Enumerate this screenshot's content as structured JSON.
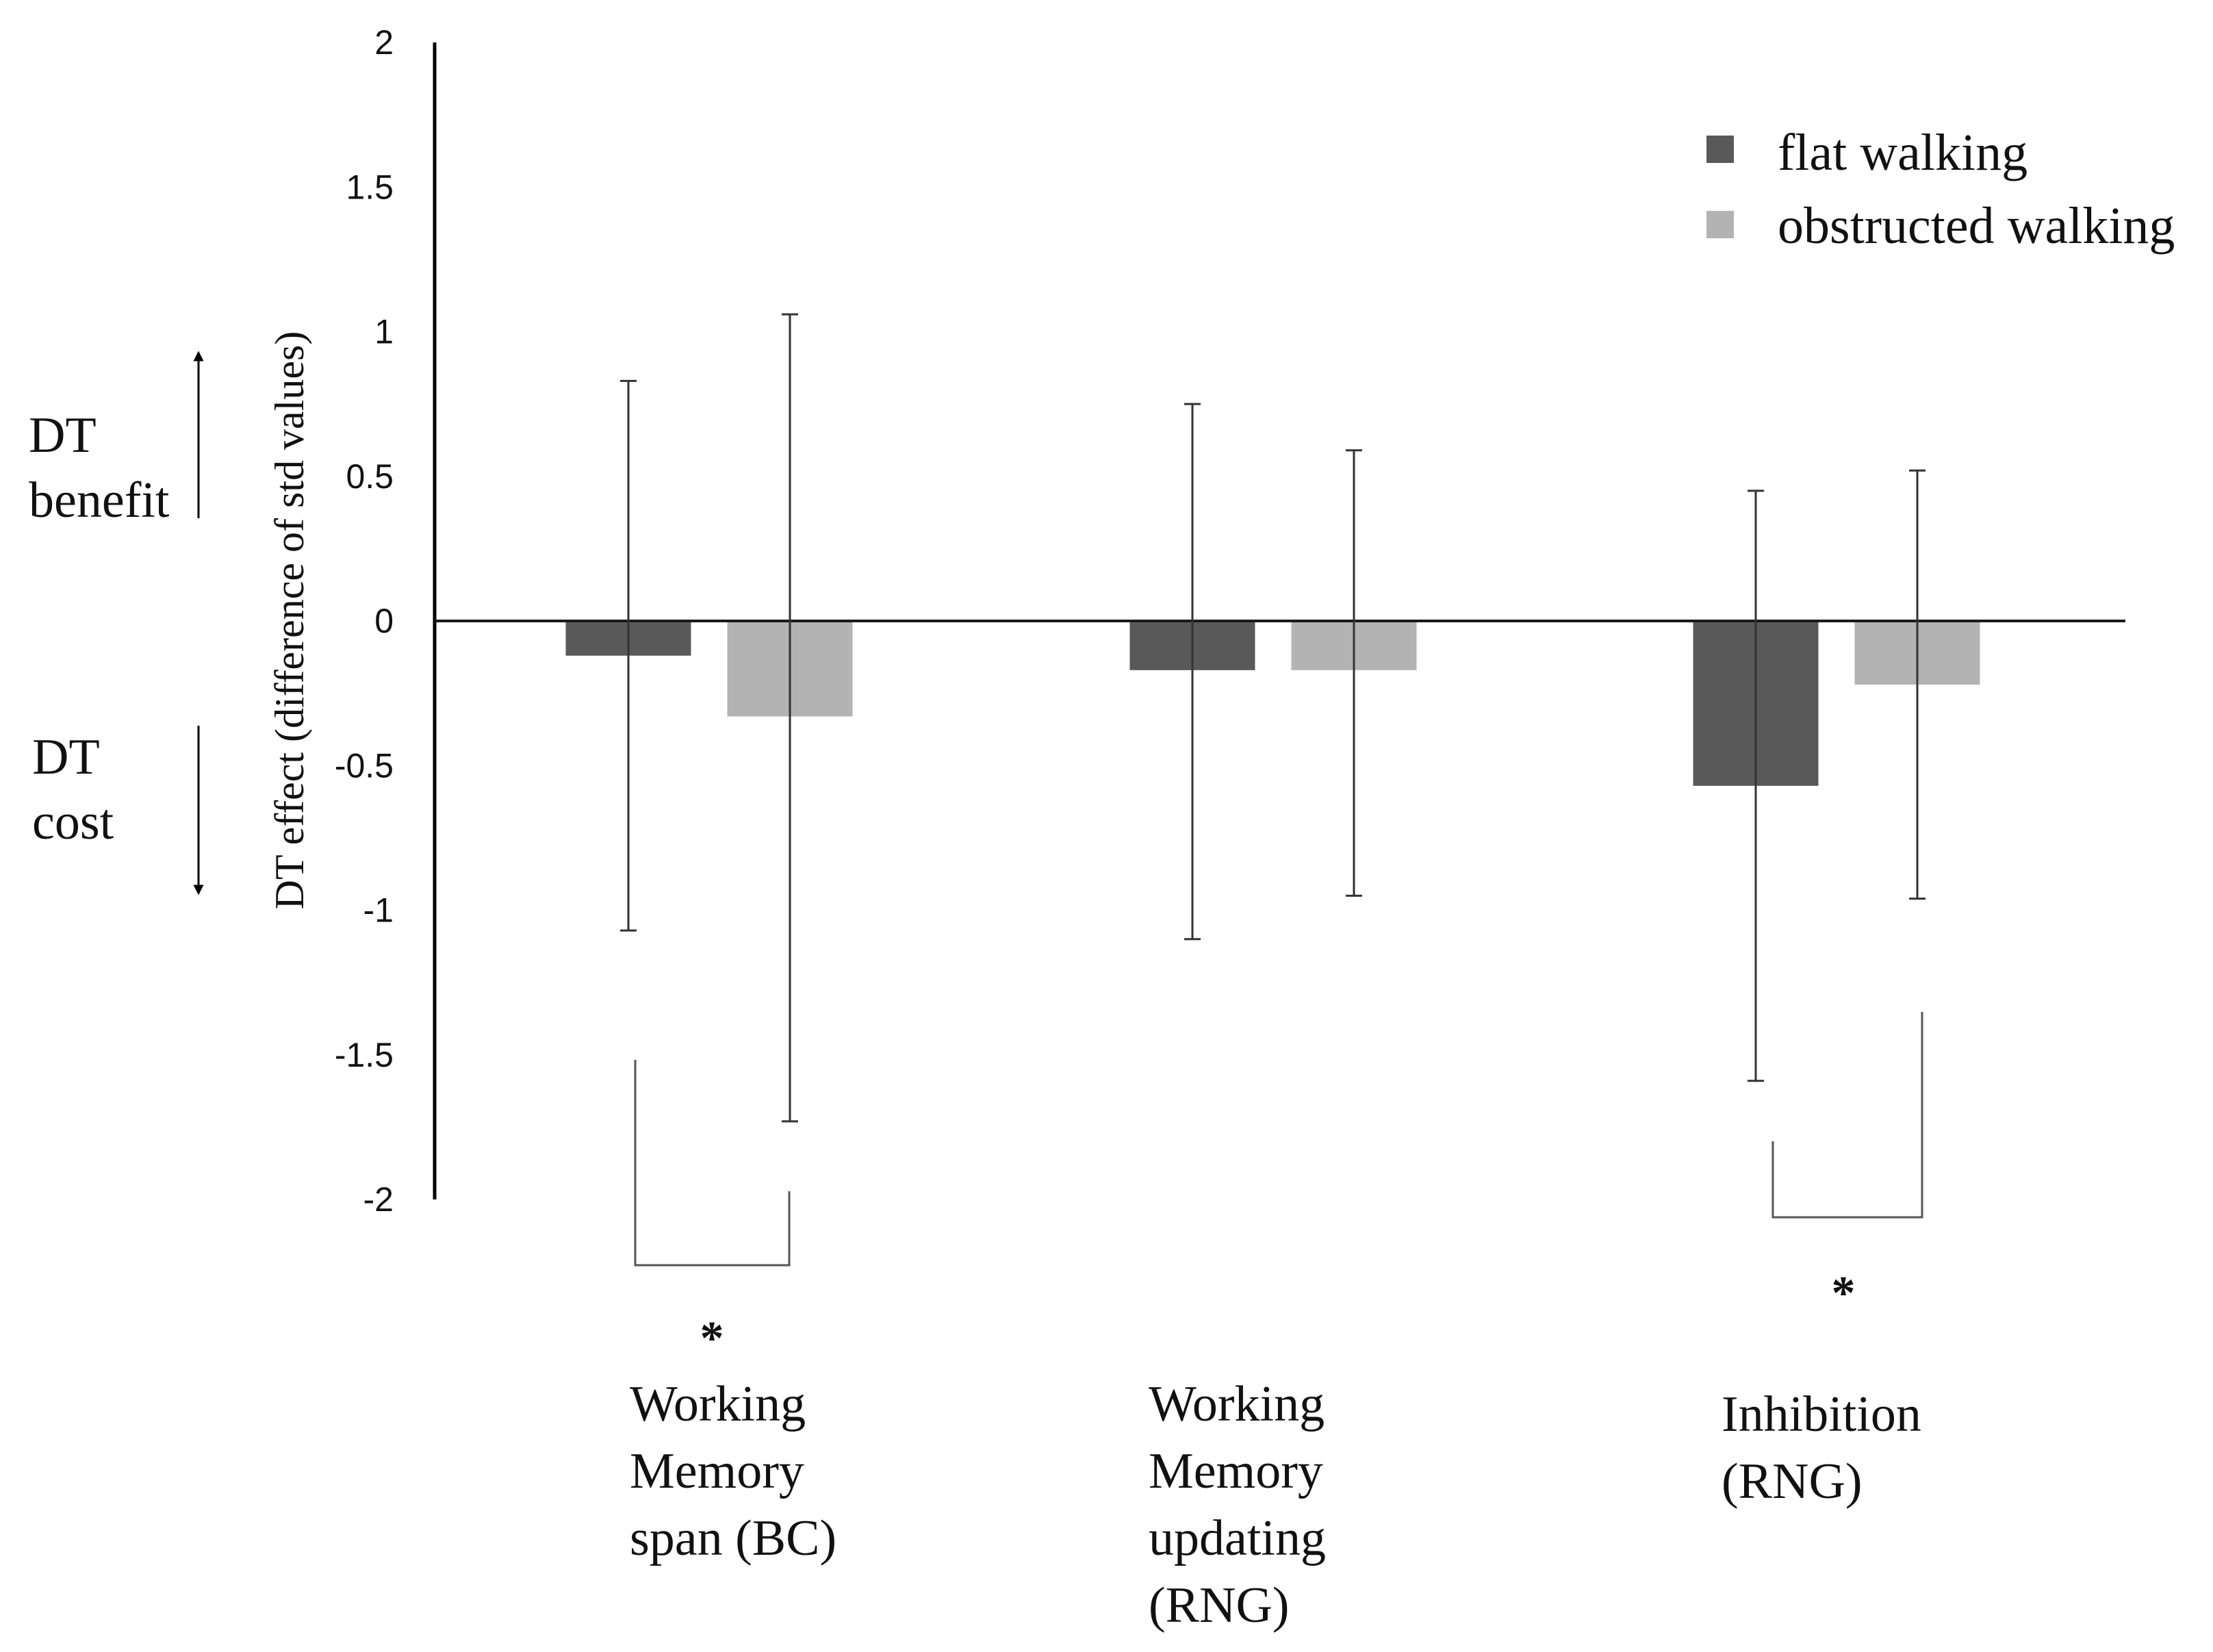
{
  "chart_data": {
    "type": "bar",
    "title": "",
    "xlabel": "",
    "ylabel": "DT effect (difference of std values)",
    "ylim": [
      -2,
      2
    ],
    "yticks": [
      2,
      1.5,
      1,
      0.5,
      0,
      -0.5,
      -1,
      -1.5,
      -2
    ],
    "ytick_labels": [
      "2",
      "1.5",
      "1",
      "0.5",
      "0",
      "-0.5",
      "-1",
      "-1.5",
      "-2"
    ],
    "grid": false,
    "legend_position": "top-right",
    "categories": [
      [
        "Working",
        "Memory",
        "span  (BC)"
      ],
      [
        "Working",
        "Memory",
        "updating",
        "(RNG)"
      ],
      [
        "Inhibition",
        "(RNG)"
      ]
    ],
    "series": [
      {
        "name": "flat walking",
        "color": "#595959",
        "values": [
          -0.12,
          -0.17,
          -0.57
        ],
        "error_upper": [
          0.83,
          0.75,
          0.45
        ],
        "error_lower": [
          -1.07,
          -1.1,
          -1.59
        ]
      },
      {
        "name": "obstructed walking",
        "color": "#b3b3b3",
        "values": [
          -0.33,
          -0.17,
          -0.22
        ],
        "error_upper": [
          1.06,
          0.59,
          0.52
        ],
        "error_lower": [
          -1.73,
          -0.95,
          -0.96
        ]
      }
    ],
    "significance": [
      {
        "category_index": 0,
        "label": "*"
      },
      {
        "category_index": 2,
        "label": "*"
      }
    ],
    "side_annotations": {
      "benefit": [
        "DT",
        "benefit"
      ],
      "cost": [
        "DT",
        "cost"
      ]
    }
  }
}
